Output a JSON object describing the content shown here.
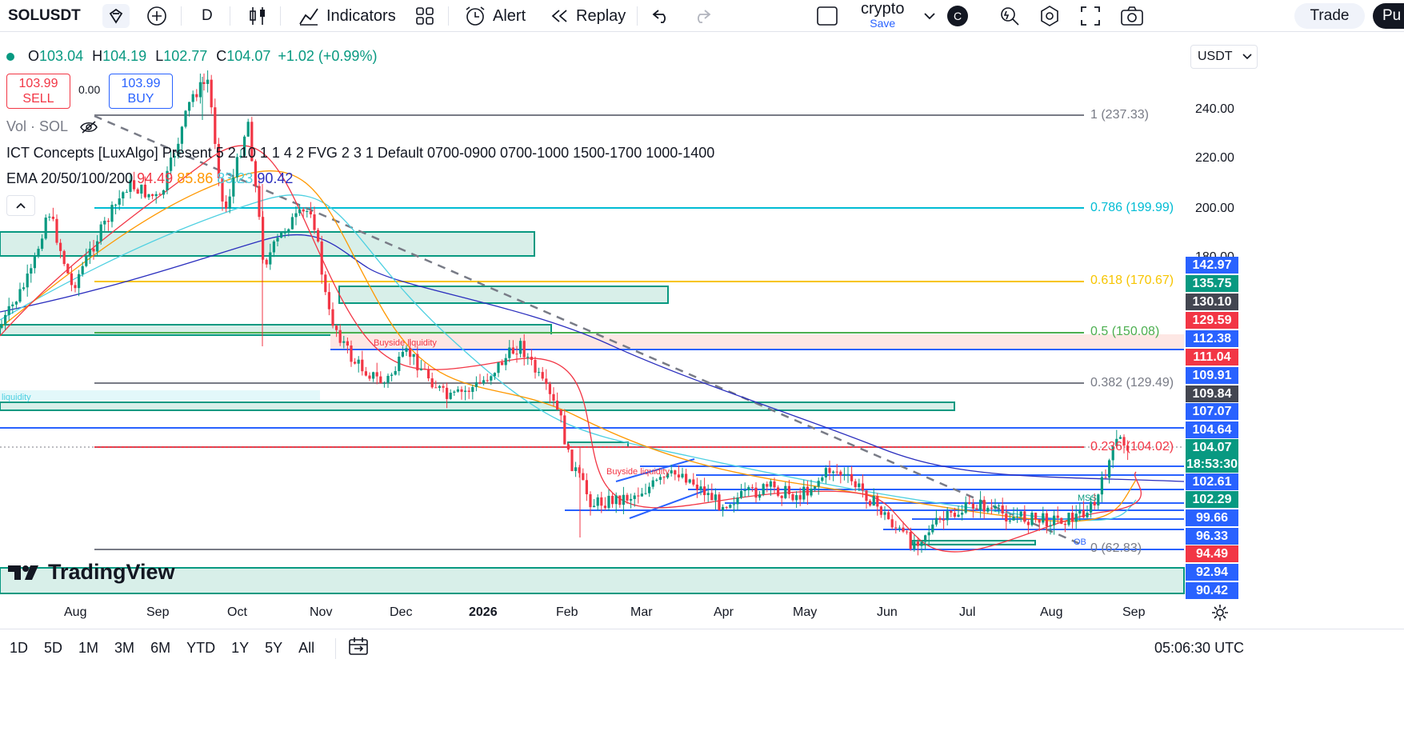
{
  "toolbar": {
    "symbol": "SOLUSDT",
    "interval": "D",
    "indicators": "Indicators",
    "alert": "Alert",
    "replay": "Replay",
    "layout_name": "crypto",
    "layout_save": "Save",
    "user_initial": "C",
    "trade": "Trade",
    "publish": "Pu"
  },
  "legend": {
    "ohlc": {
      "o_label": "O",
      "o": "103.04",
      "h_label": "H",
      "h": "104.19",
      "l_label": "L",
      "l": "102.77",
      "c_label": "C",
      "c": "104.07",
      "change": "+1.02 (+0.99%)"
    },
    "sell_price": "103.99",
    "sell_label": "SELL",
    "spread": "0.00",
    "buy_price": "103.99",
    "buy_label": "BUY",
    "vol": "Vol · SOL",
    "ict": "ICT Concepts [LuxAlgo] Present 5 2 10 1 1 4 2 FVG 2 3 1 Default 0700-0900 0700-1000 1500-1700 1000-1400",
    "ema_title": "EMA 20/50/100/200",
    "ema_values": [
      "94.49",
      "85.86",
      "83.23",
      "90.42"
    ],
    "ema_colors": [
      "#f23645",
      "#ff9800",
      "#4dd0e1",
      "#2a2ebe"
    ],
    "collapse": "^"
  },
  "currency": "USDT",
  "fib_levels": [
    {
      "label": "1 (237.33)",
      "color": "#787b86"
    },
    {
      "label": "0.786 (199.99)",
      "color": "#00bcd4"
    },
    {
      "label": "0.618 (170.67)",
      "color": "#f7c500"
    },
    {
      "label": "0.5 (150.08)",
      "color": "#4caf50"
    },
    {
      "label": "0.382 (129.49)",
      "color": "#787b86"
    },
    {
      "label": "0.236 (104.02)",
      "color": "#f23645"
    },
    {
      "label": "0 (62.83)",
      "color": "#787b86"
    }
  ],
  "annotations": {
    "buyside1": "Buyside liquidity",
    "buyside2": "Buyside liquidity",
    "liquidity": "liquidity",
    "mss": "MSS",
    "ob": "OB"
  },
  "y_axis": [
    "240.00",
    "220.00",
    "200.00",
    "180.00"
  ],
  "price_labels": [
    {
      "value": "142.97",
      "bg": "#2962ff"
    },
    {
      "value": "135.75",
      "bg": "#089981"
    },
    {
      "value": "130.10",
      "bg": "#434651"
    },
    {
      "value": "129.59",
      "bg": "#f23645"
    },
    {
      "value": "112.38",
      "bg": "#2962ff"
    },
    {
      "value": "111.04",
      "bg": "#f23645"
    },
    {
      "value": "109.91",
      "bg": "#2962ff"
    },
    {
      "value": "109.84",
      "bg": "#434651"
    },
    {
      "value": "107.07",
      "bg": "#2962ff"
    },
    {
      "value": "104.64",
      "bg": "#2962ff"
    },
    {
      "value": "104.07",
      "bg": "#089981"
    },
    {
      "value": "18:53:30",
      "bg": "#089981"
    },
    {
      "value": "102.61",
      "bg": "#2962ff"
    },
    {
      "value": "102.29",
      "bg": "#089981"
    },
    {
      "value": "99.66",
      "bg": "#2962ff"
    },
    {
      "value": "96.33",
      "bg": "#2962ff"
    },
    {
      "value": "94.49",
      "bg": "#f23645"
    },
    {
      "value": "92.94",
      "bg": "#2962ff"
    },
    {
      "value": "90.42",
      "bg": "#2962ff"
    }
  ],
  "x_axis": [
    "Aug",
    "Sep",
    "Oct",
    "Nov",
    "Dec",
    "2026",
    "Feb",
    "Mar",
    "Apr",
    "May",
    "Jun",
    "Jul",
    "Aug",
    "Sep"
  ],
  "ranges": [
    "1D",
    "5D",
    "1M",
    "3M",
    "6M",
    "YTD",
    "1Y",
    "5Y",
    "All"
  ],
  "clock": "05:06:30 UTC",
  "logo": "TradingView",
  "colors": {
    "up": "#089981",
    "down": "#f23645",
    "zone": "#b2dfdb",
    "zone_border": "#089981",
    "blue_line": "#2962ff"
  }
}
